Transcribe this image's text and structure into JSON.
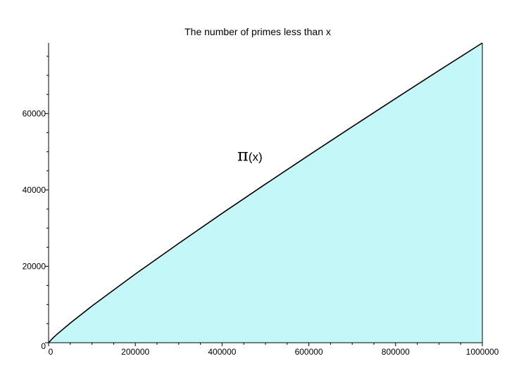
{
  "chart_data": {
    "type": "area",
    "title": "The number of primes less than x",
    "xlabel": "",
    "ylabel": "",
    "xlim": [
      0,
      1000000
    ],
    "ylim": [
      0,
      78498
    ],
    "x_ticks": [
      0,
      200000,
      400000,
      600000,
      800000,
      1000000
    ],
    "x_tick_labels": [
      "0",
      "200000",
      "400000",
      "600000",
      "800000",
      "1000000"
    ],
    "y_ticks": [
      0,
      20000,
      40000,
      60000
    ],
    "y_tick_labels": [
      "0",
      "20000",
      "40000",
      "60000"
    ],
    "x": [
      0,
      10000,
      20000,
      50000,
      100000,
      200000,
      300000,
      400000,
      500000,
      600000,
      700000,
      800000,
      900000,
      1000000
    ],
    "series": [
      {
        "name": "",
        "values": [
          0,
          1229,
          2262,
          5133,
          9592,
          17984,
          25997,
          33860,
          41538,
          49098,
          56543,
          63951,
          71274,
          78498
        ]
      }
    ],
    "annotation": {
      "symbol": "π",
      "arg": "(x)",
      "at_x": 500000,
      "at_y": 48000
    },
    "fill_color": "#c4f8f8",
    "line_color": "#000000",
    "grid": false,
    "legend": "none"
  }
}
